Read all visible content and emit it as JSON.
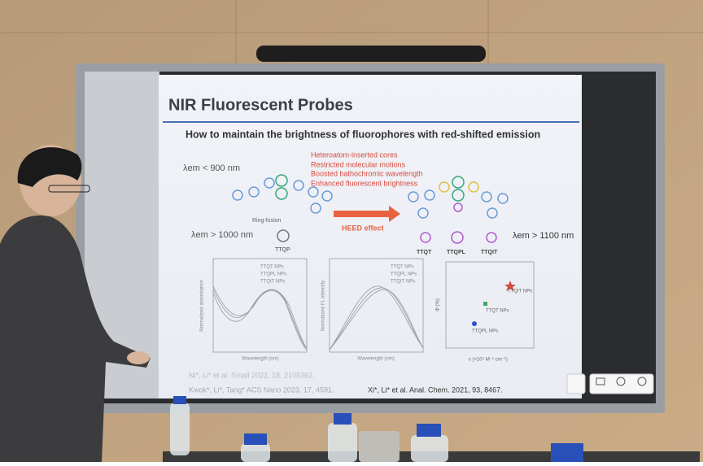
{
  "slide": {
    "title": "NIR Fluorescent Probes",
    "subtitle": "How to maintain the brightness of fluorophores with red-shifted emission",
    "bullets": [
      "Heteroatom-inserted cores",
      "Restricted molecular motions",
      "Boosted bathochromic wavelength",
      "Enhanced fluorescent brightness"
    ],
    "emission_labels": [
      "λem < 900 nm",
      "λem > 1000 nm",
      "λem > 1100 nm"
    ],
    "effect": "HEED effect",
    "ring_fusion": "Ring-fusion",
    "molecules": [
      "TTQP",
      "TTQT",
      "TTQPL",
      "TTQIT"
    ],
    "legend_abs": [
      "TTQT NPs",
      "TTQPL NPs",
      "TTQIT NPs"
    ],
    "legend_fl": [
      "TTQT NPs",
      "TTQPL NPs",
      "TTQIT NPs"
    ],
    "axis_labels": [
      "Normalized absorbance",
      "Wavelength (nm)",
      "Normalized FL intensity",
      "Wavelength (nm)",
      "Φ (%)",
      "ε (×10⁴ M⁻¹ cm⁻¹)"
    ],
    "scatter_labels": [
      "TTQIT NPs",
      "TTQT NPs",
      "TTQPL NPs"
    ],
    "references": [
      "Ni*, Li* et al. Small 2022, 18, 2105362.",
      "Kwok*, Li*, Tang* ACS Nano 2023, 17, 4591.",
      "Xi*, Li* et al. Anal. Chem. 2021, 93, 8467."
    ]
  }
}
